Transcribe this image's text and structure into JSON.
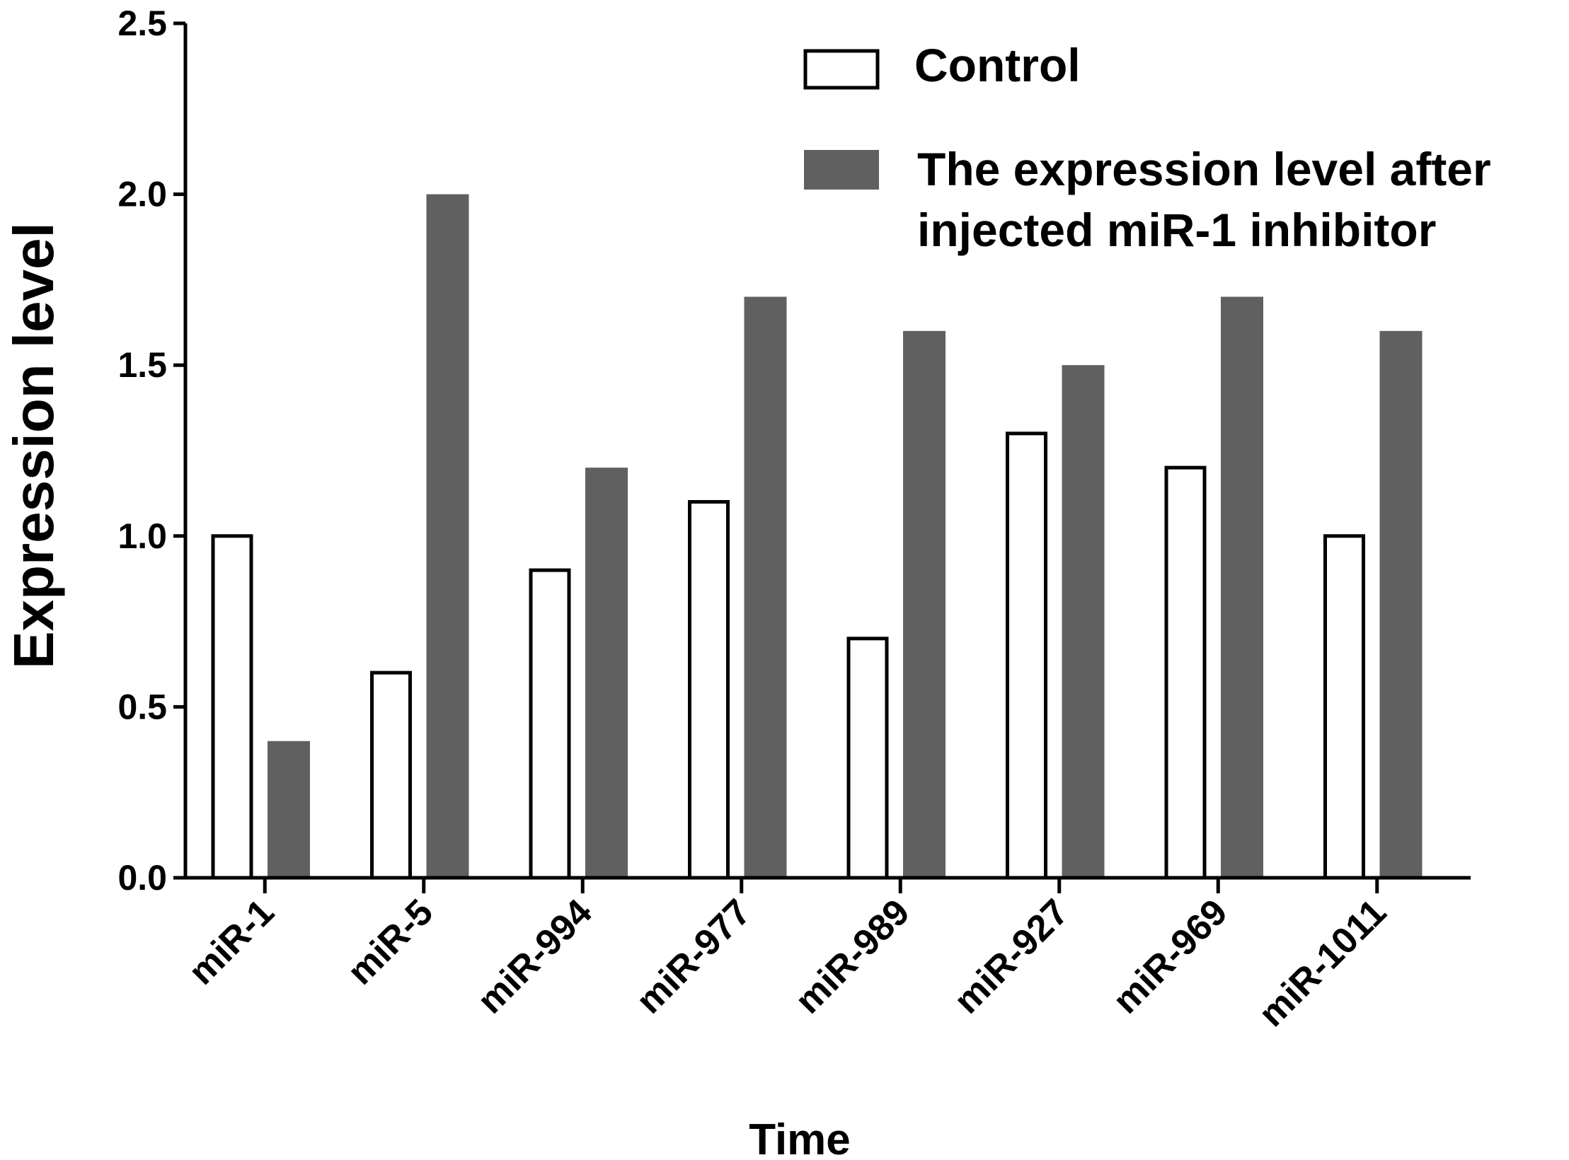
{
  "chart_data": {
    "type": "bar",
    "title": "",
    "xlabel": "Time",
    "ylabel": "Expression level",
    "ylim": [
      0,
      2.5
    ],
    "yticks": [
      "0.0",
      "0.5",
      "1.0",
      "1.5",
      "2.0",
      "2.5"
    ],
    "categories": [
      "miR-1",
      "miR-5",
      "miR-994",
      "miR-977",
      "miR-989",
      "miR-927",
      "miR-969",
      "miR-1011"
    ],
    "series": [
      {
        "name": "Control",
        "values": [
          1.0,
          0.6,
          0.9,
          1.1,
          0.7,
          1.3,
          1.2,
          1.0
        ],
        "fill": "#ffffff",
        "stroke": "#000000"
      },
      {
        "name_lines": [
          "The expression level after",
          " injected miR-1 inhibitor"
        ],
        "values": [
          0.4,
          2.0,
          1.2,
          1.7,
          1.6,
          1.5,
          1.7,
          1.6
        ],
        "fill": "#606060",
        "stroke": "#606060"
      }
    ],
    "legend_position": "top-right",
    "grid": false
  }
}
